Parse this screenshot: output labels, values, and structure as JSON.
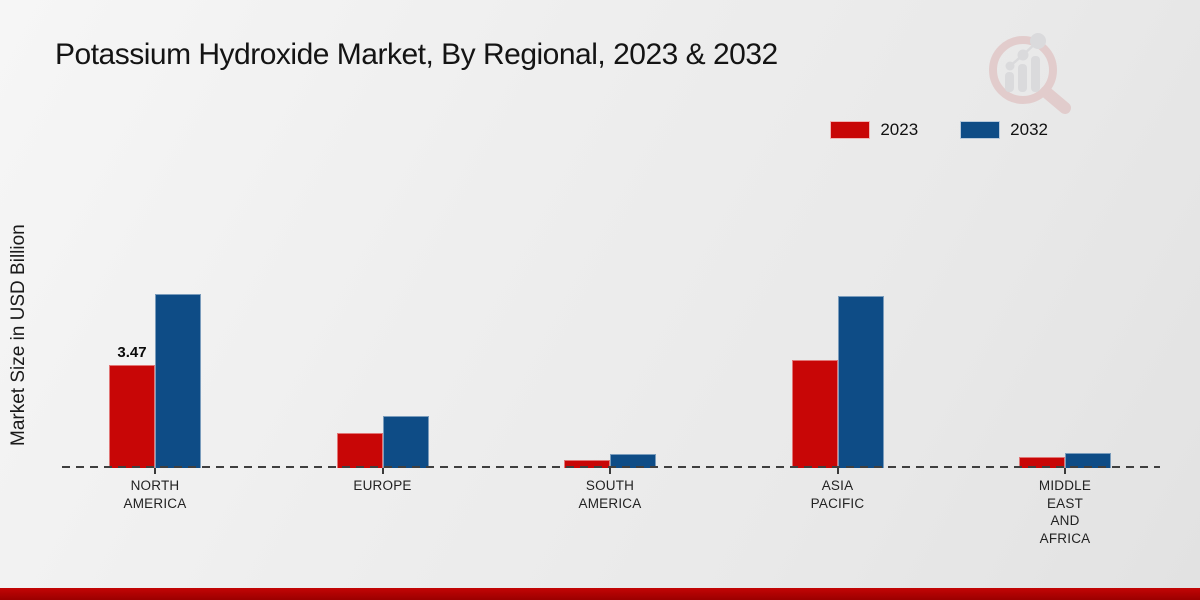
{
  "title": "Potassium Hydroxide Market, By Regional, 2023 & 2032",
  "y_axis_label": "Market Size in USD Billion",
  "footer_color": "#b00000",
  "watermark": {
    "ring_color": "#d9a6a6",
    "glyph_color": "#c6c6cb",
    "name": "market-research-logo"
  },
  "chart_data": {
    "type": "bar",
    "title": "Potassium Hydroxide Market, By Regional, 2023 & 2032",
    "xlabel": "",
    "ylabel": "Market Size in USD Billion",
    "categories": [
      "NORTH AMERICA",
      "EUROPE",
      "SOUTH AMERICA",
      "ASIA PACIFIC",
      "MIDDLE EAST AND AFRICA"
    ],
    "category_label_lines": [
      [
        "NORTH",
        "AMERICA"
      ],
      [
        "EUROPE"
      ],
      [
        "SOUTH",
        "AMERICA"
      ],
      [
        "ASIA",
        "PACIFIC"
      ],
      [
        "MIDDLE",
        "EAST",
        "AND",
        "AFRICA"
      ]
    ],
    "series": [
      {
        "name": "2023",
        "color": "#c80606",
        "values": [
          3.47,
          1.18,
          0.28,
          3.64,
          0.38
        ]
      },
      {
        "name": "2032",
        "color": "#0e4c86",
        "values": [
          5.85,
          1.76,
          0.48,
          5.78,
          0.51
        ]
      }
    ],
    "data_labels": [
      {
        "series_index": 0,
        "category_index": 0,
        "text": "3.47"
      }
    ],
    "ylim": [
      0,
      10
    ],
    "grid": false,
    "legend_position": "top-right",
    "baseline_style": "dashed"
  }
}
